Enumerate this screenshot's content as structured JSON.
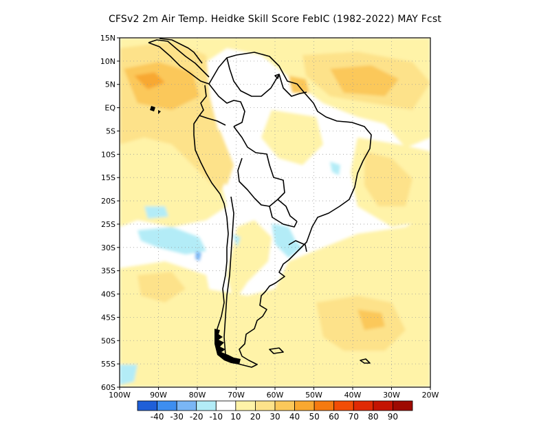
{
  "title": "CFSv2  2m Air Temp. Heidke Skill Score FebIC (1982-2022) MAY Fcst",
  "map": {
    "lat_labels": [
      "15N",
      "10N",
      "5N",
      "EQ",
      "5S",
      "10S",
      "15S",
      "20S",
      "25S",
      "30S",
      "35S",
      "40S",
      "45S",
      "50S",
      "55S",
      "60S"
    ],
    "lon_labels": [
      "100W",
      "90W",
      "80W",
      "70W",
      "60W",
      "50W",
      "40W",
      "30W",
      "20W"
    ],
    "grid": true
  },
  "colorbar": {
    "colors": [
      "#1f5fd8",
      "#3d8ef0",
      "#7ab6f5",
      "#b3ecf7",
      "#ffffff",
      "#fff3a8",
      "#fde28a",
      "#fbc85a",
      "#f8a830",
      "#f57a10",
      "#f24d06",
      "#e02a04",
      "#c41402",
      "#9e0a01"
    ],
    "tick_labels": [
      "-40",
      "-30",
      "-20",
      "-10",
      "10",
      "20",
      "30",
      "40",
      "50",
      "60",
      "70",
      "80",
      "90"
    ]
  }
}
